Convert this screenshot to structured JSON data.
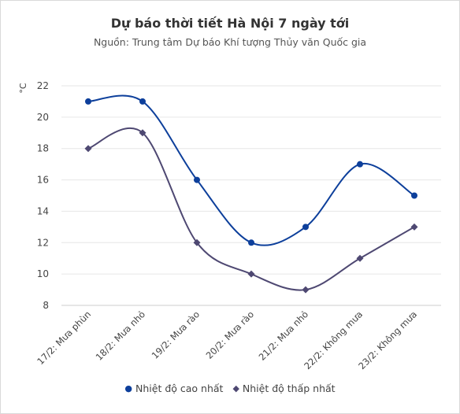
{
  "chart_data": {
    "type": "line",
    "title": "Dự báo thời tiết Hà Nội 7 ngày tới",
    "subtitle": "Nguồn: Trung tâm Dự báo Khí tượng Thủy văn Quốc gia",
    "ylabel": "°C",
    "ylim": [
      8,
      22
    ],
    "yticks": [
      8,
      10,
      12,
      14,
      16,
      18,
      20,
      22
    ],
    "categories": [
      "17/2: Mưa phùn",
      "18/2: Mưa nhỏ",
      "19/2: Mưa rào",
      "20/2: Mưa rào",
      "21/2: Mưa nhỏ",
      "22/2: Không mưa",
      "23/2: Không mưa"
    ],
    "series": [
      {
        "name": "Nhiệt độ cao nhất",
        "values": [
          21,
          21,
          16,
          12,
          13,
          17,
          15
        ],
        "color": "#0d3f9b",
        "marker": "circle"
      },
      {
        "name": "Nhiệt độ thấp nhất",
        "values": [
          18,
          19,
          12,
          10,
          9,
          11,
          13
        ],
        "color": "#4e4872",
        "marker": "diamond"
      }
    ],
    "grid": true,
    "legend_position": "bottom"
  }
}
